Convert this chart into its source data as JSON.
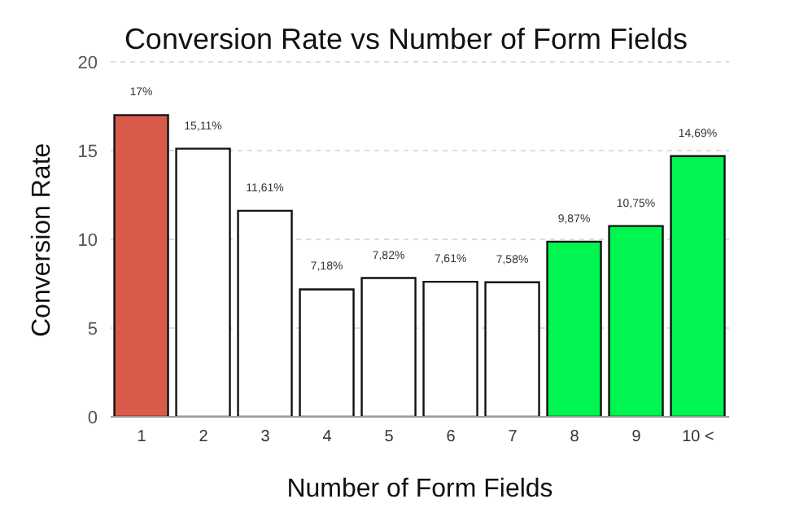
{
  "chart_data": {
    "type": "bar",
    "title": "Conversion Rate vs Number of Form Fields",
    "xlabel": "Number of Form Fields",
    "ylabel": "Conversion Rate",
    "categories": [
      "1",
      "2",
      "3",
      "4",
      "5",
      "6",
      "7",
      "8",
      "9",
      "10 <"
    ],
    "values": [
      17,
      15.11,
      11.61,
      7.18,
      7.82,
      7.61,
      7.58,
      9.87,
      10.75,
      14.69
    ],
    "value_labels": [
      "17%",
      "15,11%",
      "11,61%",
      "7,18%",
      "7,82%",
      "7,61%",
      "7,58%",
      "9,87%",
      "10,75%",
      "14,69%"
    ],
    "colors": [
      "#d95b4b",
      "#ffffff",
      "#ffffff",
      "#ffffff",
      "#ffffff",
      "#ffffff",
      "#ffffff",
      "#00f550",
      "#00f550",
      "#00f550"
    ],
    "ylim": [
      0,
      20
    ],
    "yticks": [
      0,
      5,
      10,
      15,
      20
    ],
    "grid": "y"
  }
}
